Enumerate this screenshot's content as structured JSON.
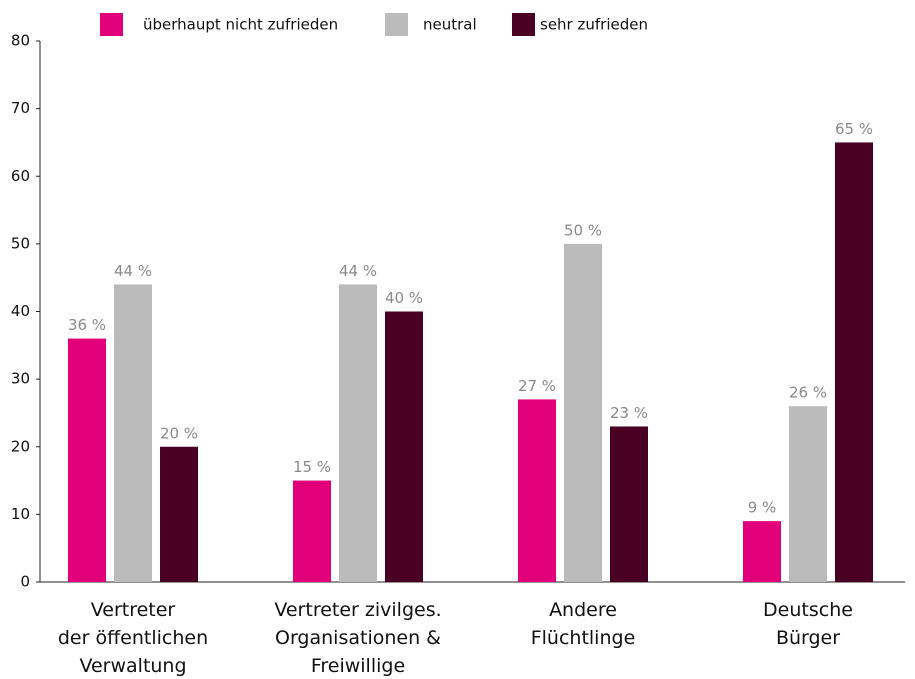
{
  "chart_data": {
    "type": "bar",
    "categories": [
      "Vertreter\nder öffentlichen\nVerwaltung",
      "Vertreter zivilges.\nOrganisationen &\nFreiwillige",
      "Andere\nFlüchtlinge",
      "Deutsche\nBürger"
    ],
    "series": [
      {
        "name": "überhaupt nicht zufrieden",
        "color": "#e2007a",
        "values": [
          36,
          15,
          27,
          9
        ],
        "value_labels": [
          "36 %",
          "15 %",
          "27 %",
          "9 %"
        ]
      },
      {
        "name": "neutral",
        "color": "#bcbbbb",
        "values": [
          44,
          44,
          50,
          26
        ],
        "value_labels": [
          "44 %",
          "44 %",
          "50 %",
          "26 %"
        ]
      },
      {
        "name": "sehr zufrieden",
        "color": "#4a0023",
        "values": [
          20,
          40,
          23,
          65
        ],
        "value_labels": [
          "20 %",
          "40 %",
          "23 %",
          "65 %"
        ]
      }
    ],
    "ylim": [
      0,
      80
    ],
    "yticks": [
      0,
      10,
      20,
      30,
      40,
      50,
      60,
      70,
      80
    ],
    "grid": false,
    "legend": "top"
  }
}
